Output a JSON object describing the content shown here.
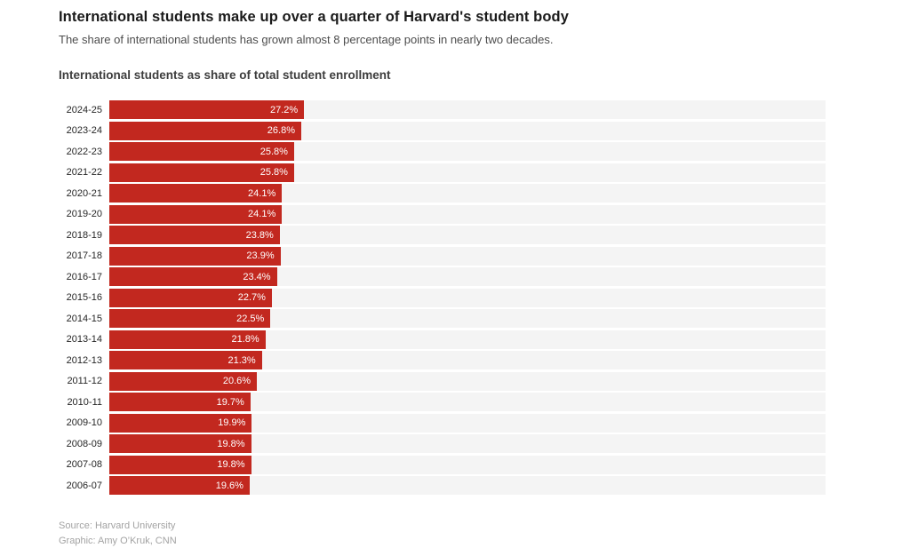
{
  "page": {
    "title": "International students make up over a quarter of Harvard's student body",
    "subtitle": "The share of international students has grown almost 8 percentage points in nearly two decades.",
    "source_line": "Source: Harvard University",
    "credit_line": "Graphic: Amy O’Kruk, CNN"
  },
  "colors": {
    "bar": "#c2281f",
    "track": "#f4f4f4",
    "value_label": "#ffffff"
  },
  "chart_data": {
    "type": "bar",
    "orientation": "horizontal",
    "title": "International students as share of total student enrollment",
    "categories": [
      "2024-25",
      "2023-24",
      "2022-23",
      "2021-22",
      "2020-21",
      "2019-20",
      "2018-19",
      "2017-18",
      "2016-17",
      "2015-16",
      "2014-15",
      "2013-14",
      "2012-13",
      "2011-12",
      "2010-11",
      "2009-10",
      "2008-09",
      "2007-08",
      "2006-07"
    ],
    "values": [
      27.2,
      26.8,
      25.8,
      25.8,
      24.1,
      24.1,
      23.8,
      23.9,
      23.4,
      22.7,
      22.5,
      21.8,
      21.3,
      20.6,
      19.7,
      19.9,
      19.8,
      19.8,
      19.6
    ],
    "value_suffix": "%",
    "xlabel": "",
    "ylabel": "",
    "xlim": [
      0,
      100
    ],
    "grid": false,
    "legend": false,
    "value_labels_position": "inside-end"
  }
}
